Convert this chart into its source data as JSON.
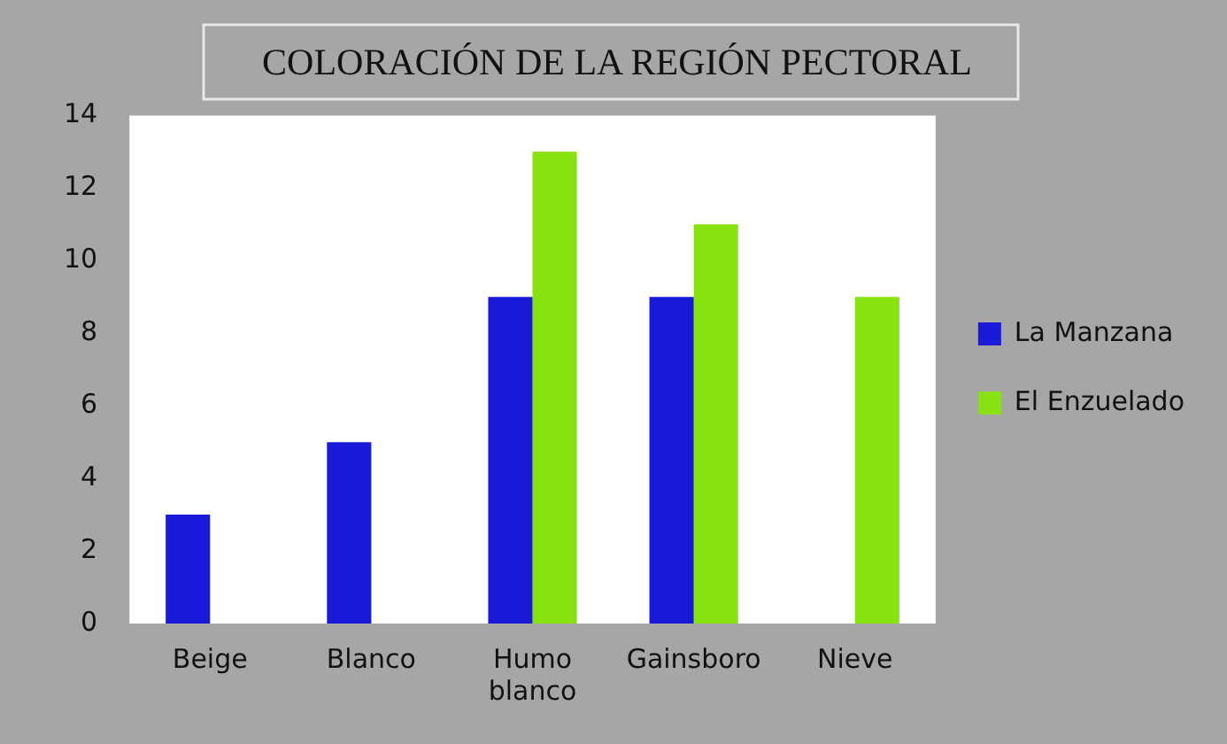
{
  "chart_data": {
    "type": "bar",
    "title": "COLORACIÓN DE LA REGIÓN PECTORAL",
    "categories": [
      "Beige",
      "Blanco",
      "Humo blanco",
      "Gainsboro",
      "Nieve"
    ],
    "series": [
      {
        "name": "La Manzana",
        "color": "#1a1ad8",
        "values": [
          3,
          5,
          9,
          9,
          0
        ]
      },
      {
        "name": "El Enzuelado",
        "color": "#88e20f",
        "values": [
          0,
          0,
          13,
          11,
          9
        ]
      }
    ],
    "ylim": [
      0,
      14
    ],
    "yticks": [
      0,
      2,
      4,
      6,
      8,
      10,
      12,
      14
    ],
    "grid": false,
    "legend": "right"
  }
}
